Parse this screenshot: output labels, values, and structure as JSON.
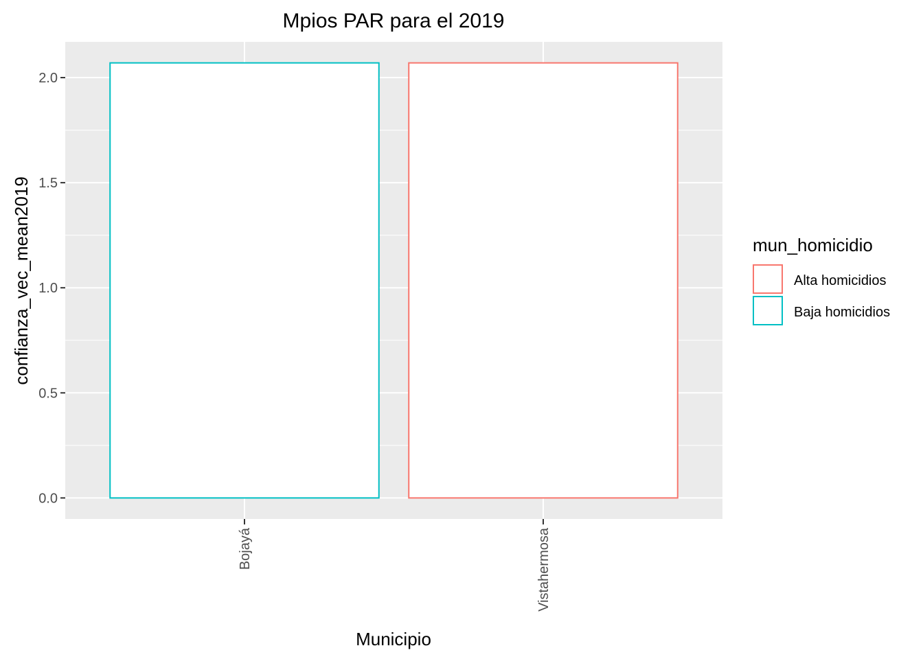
{
  "chart_data": {
    "type": "bar",
    "title": "Mpios PAR para el 2019",
    "xlabel": "Municipio",
    "ylabel": "confianza_vec_mean2019",
    "categories": [
      "Bojayá",
      "Vistahermosa"
    ],
    "values": [
      2.07,
      2.07
    ],
    "groups": [
      "Baja homicidios",
      "Alta homicidios"
    ],
    "ylim": [
      -0.1,
      2.17
    ],
    "yticks": [
      "0.0",
      "0.5",
      "1.0",
      "1.5",
      "2.0"
    ],
    "grid": true,
    "fill": "#ffffff",
    "panel_background": "#ebebeb",
    "legend": {
      "title": "mun_homicidio",
      "placement": "right",
      "entries": [
        {
          "label": "Alta homicidios",
          "color": "#f8766d"
        },
        {
          "label": "Baja homicidios",
          "color": "#00bfc4"
        }
      ]
    }
  }
}
